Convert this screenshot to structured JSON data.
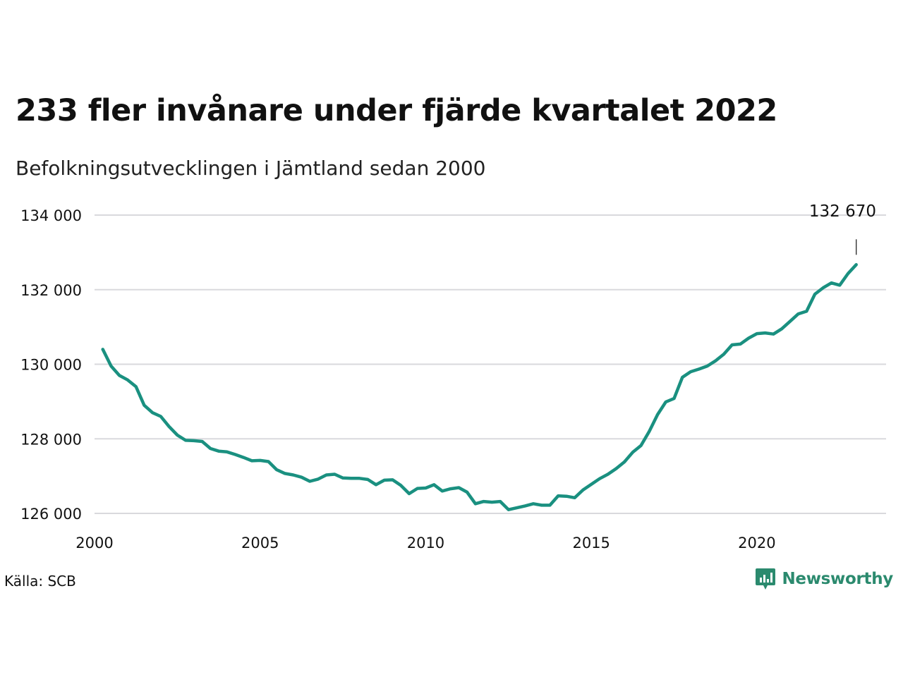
{
  "title": "233 fler invånare under fjärde kvartalet 2022",
  "subtitle": "Befolkningsutvecklingen i Jämtland sedan 2000",
  "source": "Källa: SCB",
  "brand": {
    "name": "Newsworthy",
    "color": "#2b8a6e",
    "icon": "newsworthy-logo-icon"
  },
  "colors": {
    "line": "#1a9080",
    "grid": "#d9d9dd",
    "text": "#111111"
  },
  "chart_data": {
    "type": "line",
    "title": "233 fler invånare under fjärde kvartalet 2022",
    "subtitle": "Befolkningsutvecklingen i Jämtland sedan 2000",
    "xlim": [
      2000,
      2023.9
    ],
    "ylim": [
      125600,
      134000
    ],
    "yticks": [
      134000,
      132000,
      130000,
      128000,
      126000
    ],
    "ytick_labels": [
      "134 000",
      "132 000",
      "130 000",
      "128 000",
      "126 000"
    ],
    "xticks": [
      2000,
      2005,
      2010,
      2015,
      2020
    ],
    "xtick_labels": [
      "2000",
      "2005",
      "2010",
      "2015",
      "2020"
    ],
    "grid": true,
    "end_label": "132 670",
    "series": [
      {
        "x": [
          2000.25,
          2000.5,
          2000.75,
          2001.0,
          2001.25,
          2001.5,
          2001.75,
          2002.0,
          2002.25,
          2002.5,
          2002.75,
          2003.0,
          2003.25,
          2003.5,
          2003.75,
          2004.0,
          2004.25,
          2004.5,
          2004.75,
          2005.0,
          2005.25,
          2005.5,
          2005.75,
          2006.0,
          2006.25,
          2006.5,
          2006.75,
          2007.0,
          2007.25,
          2007.5,
          2007.75,
          2008.0,
          2008.25,
          2008.5,
          2008.75,
          2009.0,
          2009.25,
          2009.5,
          2009.75,
          2010.0,
          2010.25,
          2010.5,
          2010.75,
          2011.0,
          2011.25,
          2011.5,
          2011.75,
          2012.0,
          2012.25,
          2012.5,
          2012.75,
          2013.0,
          2013.25,
          2013.5,
          2013.75,
          2014.0,
          2014.25,
          2014.5,
          2014.75,
          2015.0,
          2015.25,
          2015.5,
          2015.75,
          2016.0,
          2016.25,
          2016.5,
          2016.75,
          2017.0,
          2017.25,
          2017.5,
          2017.75,
          2018.0,
          2018.25,
          2018.5,
          2018.75,
          2019.0,
          2019.25,
          2019.5,
          2019.75,
          2020.0,
          2020.25,
          2020.5,
          2020.75,
          2021.0,
          2021.25,
          2021.5,
          2021.75,
          2022.0,
          2022.25,
          2022.5,
          2022.75,
          2023.0
        ],
        "values": [
          130400,
          129950,
          129700,
          129580,
          129400,
          128900,
          128700,
          128600,
          128330,
          128100,
          127960,
          127950,
          127930,
          127740,
          127670,
          127650,
          127580,
          127500,
          127410,
          127420,
          127390,
          127170,
          127070,
          127030,
          126970,
          126860,
          126920,
          127030,
          127050,
          126950,
          126940,
          126940,
          126910,
          126770,
          126890,
          126900,
          126750,
          126530,
          126670,
          126680,
          126770,
          126600,
          126660,
          126690,
          126570,
          126260,
          126320,
          126300,
          126320,
          126100,
          126150,
          126200,
          126260,
          126220,
          126220,
          126470,
          126460,
          126420,
          126630,
          126780,
          126930,
          127050,
          127200,
          127380,
          127640,
          127820,
          128200,
          128650,
          128990,
          129080,
          129650,
          129800,
          129870,
          129950,
          130090,
          130270,
          130520,
          130540,
          130700,
          130820,
          130840,
          130810,
          130950,
          131150,
          131350,
          131420,
          131880,
          132050,
          132180,
          132120,
          132430,
          132670
        ]
      }
    ]
  }
}
